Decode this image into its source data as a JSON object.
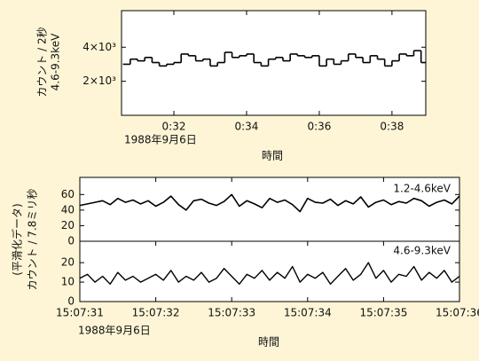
{
  "chart_data": [
    {
      "type": "line",
      "step": true,
      "color": "#000000",
      "x": [
        30.6,
        30.8,
        31.0,
        31.2,
        31.4,
        31.6,
        31.8,
        32.0,
        32.2,
        32.4,
        32.6,
        32.8,
        33.0,
        33.2,
        33.4,
        33.6,
        33.8,
        34.0,
        34.2,
        34.4,
        34.6,
        34.8,
        35.0,
        35.2,
        35.4,
        35.6,
        35.8,
        36.0,
        36.2,
        36.4,
        36.6,
        36.8,
        37.0,
        37.2,
        37.4,
        37.6,
        37.8,
        38.0,
        38.2,
        38.4,
        38.6,
        38.8
      ],
      "values": [
        3000,
        3300,
        3200,
        3400,
        3100,
        2900,
        3000,
        3100,
        3600,
        3500,
        3200,
        3300,
        2900,
        3100,
        3700,
        3400,
        3500,
        3600,
        3100,
        2900,
        3300,
        3400,
        3200,
        3600,
        3500,
        3400,
        3500,
        2900,
        3300,
        3000,
        3200,
        3600,
        3400,
        3100,
        3500,
        3300,
        2900,
        3200,
        3600,
        3500,
        3800,
        3100
      ],
      "xlim": [
        30.56,
        38.93
      ],
      "xticks": [
        {
          "value": 32,
          "label": "0:32"
        },
        {
          "value": 34,
          "label": "0:34"
        },
        {
          "value": 36,
          "label": "0:36"
        },
        {
          "value": 38,
          "label": "0:38"
        }
      ],
      "ylim": [
        0,
        6150
      ],
      "yticks": [
        {
          "value": 2000,
          "label": "2×10³"
        },
        {
          "value": 4000,
          "label": "4×10³"
        }
      ],
      "y_label": [
        "カウント / 2秒",
        "4.6-9.3keV"
      ],
      "date": "1988年9月6日",
      "x_label": "時間"
    },
    {
      "type": "line",
      "color": "#000000",
      "x": [
        31.0,
        31.1,
        31.2,
        31.3,
        31.4,
        31.5,
        31.6,
        31.7,
        31.8,
        31.9,
        32.0,
        32.1,
        32.2,
        32.3,
        32.4,
        32.5,
        32.6,
        32.7,
        32.8,
        32.9,
        33.0,
        33.1,
        33.2,
        33.3,
        33.4,
        33.5,
        33.6,
        33.7,
        33.8,
        33.9,
        34.0,
        34.1,
        34.2,
        34.3,
        34.4,
        34.5,
        34.6,
        34.7,
        34.8,
        34.9,
        35.0,
        35.1,
        35.2,
        35.3,
        35.4,
        35.5,
        35.6,
        35.7,
        35.8,
        35.9,
        36.0
      ],
      "values": [
        46,
        48,
        50,
        52,
        47,
        55,
        50,
        53,
        48,
        52,
        45,
        50,
        58,
        47,
        40,
        52,
        54,
        49,
        46,
        51,
        60,
        45,
        52,
        48,
        43,
        55,
        50,
        53,
        47,
        38,
        55,
        50,
        49,
        54,
        46,
        52,
        48,
        57,
        44,
        50,
        53,
        47,
        51,
        49,
        55,
        52,
        45,
        50,
        53,
        48,
        58
      ],
      "xlim": [
        31,
        36
      ],
      "ylim": [
        0,
        82
      ],
      "yticks": [
        0,
        20,
        40,
        60
      ],
      "annotation": "1.2-4.6keV",
      "y_label": [
        "(平滑化データ)",
        "カウント / 7.8ミリ秒"
      ]
    },
    {
      "type": "line",
      "color": "#000000",
      "x": [
        31.0,
        31.1,
        31.2,
        31.3,
        31.4,
        31.5,
        31.6,
        31.7,
        31.8,
        31.9,
        32.0,
        32.1,
        32.2,
        32.3,
        32.4,
        32.5,
        32.6,
        32.7,
        32.8,
        32.9,
        33.0,
        33.1,
        33.2,
        33.3,
        33.4,
        33.5,
        33.6,
        33.7,
        33.8,
        33.9,
        34.0,
        34.1,
        34.2,
        34.3,
        34.4,
        34.5,
        34.6,
        34.7,
        34.8,
        34.9,
        35.0,
        35.1,
        35.2,
        35.3,
        35.4,
        35.5,
        35.6,
        35.7,
        35.8,
        35.9,
        36.0
      ],
      "values": [
        12,
        14,
        10,
        13,
        9,
        15,
        11,
        13,
        10,
        12,
        14,
        11,
        16,
        10,
        13,
        11,
        15,
        10,
        12,
        17,
        13,
        9,
        14,
        12,
        16,
        11,
        15,
        12,
        18,
        10,
        14,
        12,
        15,
        9,
        13,
        17,
        11,
        14,
        20,
        12,
        16,
        10,
        14,
        13,
        18,
        11,
        15,
        12,
        16,
        10,
        13
      ],
      "xlim": [
        31,
        36
      ],
      "ylim": [
        0,
        31
      ],
      "yticks": [
        0,
        10,
        20
      ],
      "annotation": "4.6-9.3keV",
      "xticks": [
        {
          "value": 31,
          "label": "15:07:31"
        },
        {
          "value": 32,
          "label": "15:07:32"
        },
        {
          "value": 33,
          "label": "15:07:33"
        },
        {
          "value": 34,
          "label": "15:07:34"
        },
        {
          "value": 35,
          "label": "15:07:35"
        },
        {
          "value": 36,
          "label": "15:07:36"
        }
      ],
      "date": "1988年9月6日",
      "x_label": "時間"
    }
  ]
}
